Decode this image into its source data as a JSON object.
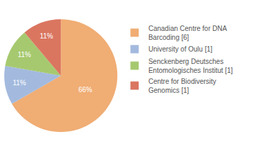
{
  "chart_data": {
    "type": "pie",
    "categories": [
      "Canadian Centre for DNA Barcoding [6]",
      "University of Oulu [1]",
      "Senckenberg Deutsches Entomologisches Institut [1]",
      "Centre for Biodiversity Genomics [1]"
    ],
    "values": [
      66,
      11,
      11,
      11
    ],
    "value_labels": [
      "66%",
      "11%",
      "11%",
      "11%"
    ],
    "colors": [
      "#f0ad74",
      "#a3bade",
      "#a6c96f",
      "#da7660"
    ],
    "data_labels": true,
    "legend": "top right"
  }
}
